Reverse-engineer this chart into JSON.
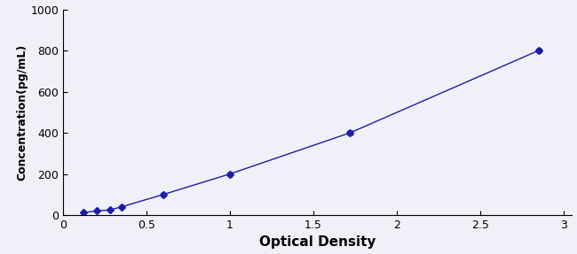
{
  "x": [
    0.12,
    0.2,
    0.28,
    0.35,
    0.6,
    1.0,
    1.72,
    2.85
  ],
  "y": [
    12,
    20,
    25,
    40,
    100,
    200,
    400,
    800
  ],
  "xerr": [
    0.005,
    0.005,
    0.005,
    0.005,
    0.008,
    0.01,
    0.012,
    0.01
  ],
  "yerr": [
    4,
    4,
    4,
    4,
    7,
    8,
    10,
    8
  ],
  "line_color": "#1C1CA8",
  "marker_color": "#1C1CA8",
  "marker": "D",
  "marker_size": 4,
  "line_width": 1.0,
  "xlabel": "Optical Density",
  "ylabel": "Concentration(pg/mL)",
  "xlim": [
    0.05,
    3.05
  ],
  "ylim": [
    0,
    1000
  ],
  "xticks": [
    0,
    0.5,
    1.0,
    1.5,
    2.0,
    2.5,
    3.0
  ],
  "yticks": [
    0,
    200,
    400,
    600,
    800,
    1000
  ],
  "xlabel_fontsize": 11,
  "ylabel_fontsize": 9,
  "tick_fontsize": 9,
  "background_color": "#f0f0f8"
}
